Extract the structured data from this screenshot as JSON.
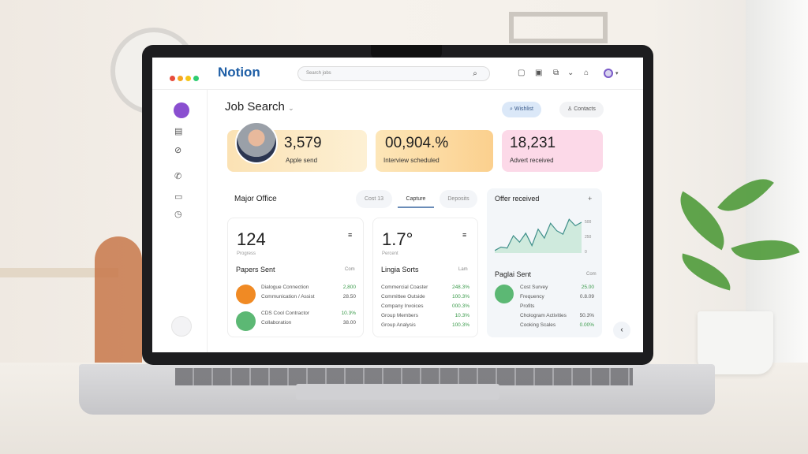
{
  "header": {
    "brand": "Notion",
    "search_placeholder": "Search jobs",
    "window_dots": [
      "#e74c3c",
      "#f5a623",
      "#f5c518",
      "#2ecc71"
    ]
  },
  "page": {
    "title": "Job Search",
    "buttons": [
      "Wishlist",
      "Contacts"
    ]
  },
  "stats": [
    {
      "value": "3,579",
      "label": "Apple send",
      "color": "#fde9c0"
    },
    {
      "value": "00,904.%",
      "label": "Interview scheduled",
      "color": "#fcd79a"
    },
    {
      "value": "18,231",
      "label": "Advert received",
      "color": "#fcd9e8"
    }
  ],
  "section": {
    "title": "Major Office",
    "tabs": [
      "Cost 13",
      "Capture",
      "Deposits"
    ],
    "active_tab": 1
  },
  "cards": [
    {
      "value": "124",
      "sub": "Progress",
      "list_title": "Papers Sent",
      "list_action": "Com",
      "rows": [
        [
          "Dialogue Connection",
          "2,800"
        ],
        [
          "Communication / Assist",
          "28.50"
        ],
        [
          "CDS Cool Contractor",
          "10.3%"
        ],
        [
          "Collaboration",
          "38.00"
        ]
      ]
    },
    {
      "value": "1.7°",
      "sub": "Percent",
      "list_title": "Lingia Sorts",
      "list_action": "Lam",
      "rows": [
        [
          "Commercial Coaster",
          "248.3%"
        ],
        [
          "Committee Outside",
          "100.3%"
        ],
        [
          "Company Invoices",
          "000.3%"
        ],
        [
          "Group Members",
          "10.3%"
        ],
        [
          "Group Analysis",
          "100.3%"
        ]
      ]
    },
    {
      "title": "Offer received",
      "list_title": "Paglai Sent",
      "list_action": "Com",
      "rows": [
        [
          "Cost Survey",
          "25.00"
        ],
        [
          "Frequency",
          "0.8.09"
        ],
        [
          "Profits",
          ""
        ],
        [
          "Chologram Activities",
          "50.3%"
        ],
        [
          "Cooking Scales",
          "0.00%"
        ]
      ],
      "chart_ticks": [
        "500",
        "250",
        "0"
      ],
      "chart_values": [
        5,
        12,
        10,
        35,
        22,
        40,
        15,
        48,
        30,
        60,
        45,
        38,
        68,
        55,
        62
      ]
    }
  ]
}
